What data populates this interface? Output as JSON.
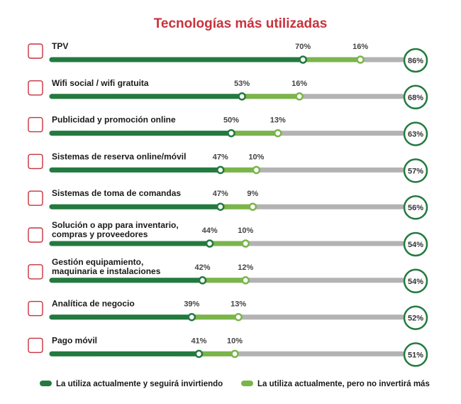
{
  "chart_data": {
    "type": "bar",
    "title": "Tecnologías más utilizadas",
    "colors": {
      "series1": "#237a3f",
      "series2": "#7ab54a",
      "remainder": "#b3b3b3",
      "title": "#c8323c",
      "icon": "#c8323c"
    },
    "categories": [
      {
        "label": [
          "TPV"
        ],
        "icon": "cash-register-icon"
      },
      {
        "label": [
          "Wifi social / wifi gratuita"
        ],
        "icon": "wifi-icon"
      },
      {
        "label": [
          "Publicidad y promoción online"
        ],
        "icon": "people-network-icon"
      },
      {
        "label": [
          "Sistemas de reserva online/móvil"
        ],
        "icon": "tablet-pen-icon"
      },
      {
        "label": [
          "Sistemas de toma de comandas"
        ],
        "icon": "order-tablet-icon"
      },
      {
        "label": [
          "Solución o app para inventario,",
          "compras y proveedores"
        ],
        "icon": "mobile-cart-icon"
      },
      {
        "label": [
          "Gestión equipamiento,",
          "maquinaria e instalaciones"
        ],
        "icon": "monitor-icon"
      },
      {
        "label": [
          "Analítica de negocio"
        ],
        "icon": "line-chart-icon"
      },
      {
        "label": [
          "Pago móvil"
        ],
        "icon": "mobile-payment-icon"
      }
    ],
    "series": [
      {
        "name": "La utiliza actualmente y seguirá invirtiendo",
        "values": [
          70,
          53,
          50,
          47,
          47,
          44,
          42,
          39,
          41
        ]
      },
      {
        "name": "La utiliza actualmente, pero no invertirá más",
        "values": [
          16,
          16,
          13,
          10,
          9,
          10,
          12,
          13,
          10
        ]
      }
    ],
    "totals": [
      86,
      68,
      63,
      57,
      56,
      54,
      54,
      52,
      51
    ],
    "unit": "%",
    "legend": "bottom"
  }
}
